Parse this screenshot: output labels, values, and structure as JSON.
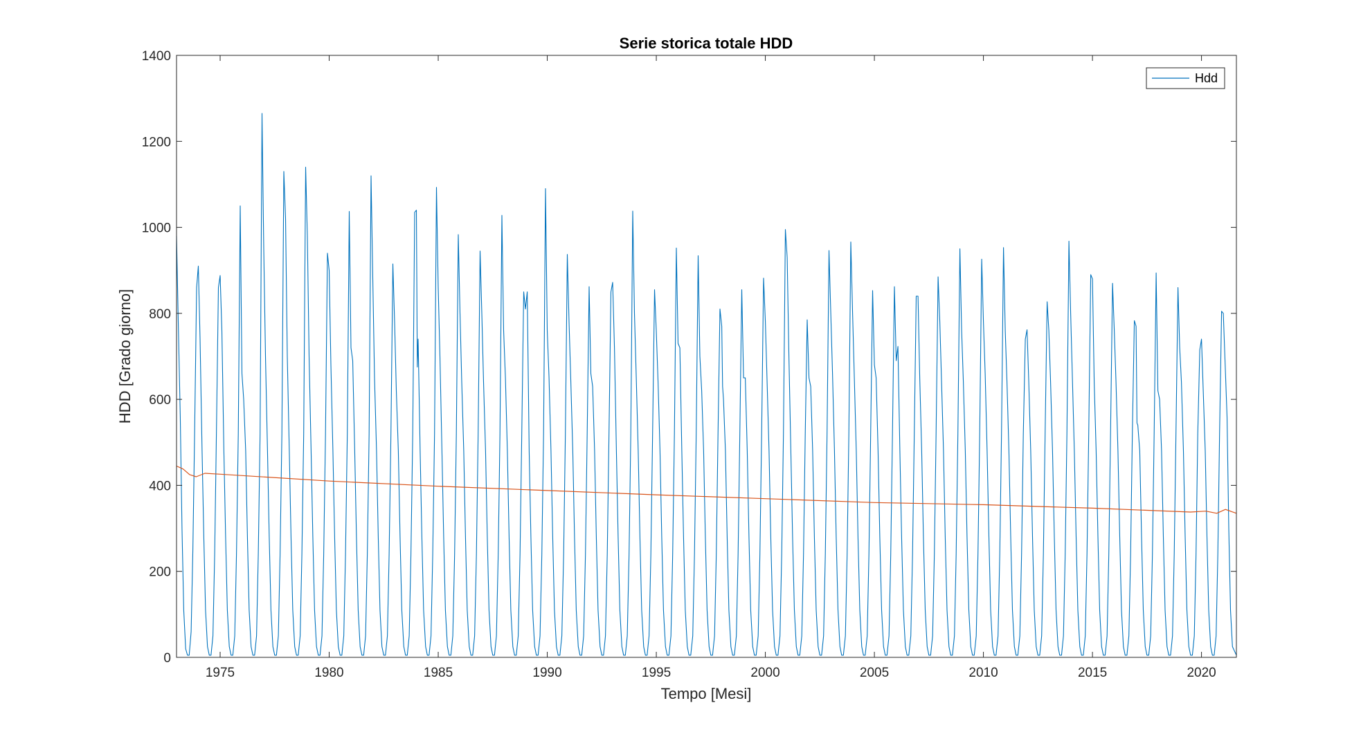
{
  "chart_data": {
    "type": "line",
    "title": "Serie storica totale HDD",
    "xlabel": "Tempo [Mesi]",
    "ylabel": "HDD [Grado giorno]",
    "xlim": [
      1973,
      2021.6
    ],
    "ylim": [
      0,
      1400
    ],
    "xticks": [
      1975,
      1980,
      1985,
      1990,
      1995,
      2000,
      2005,
      2010,
      2015,
      2020
    ],
    "yticks": [
      0,
      200,
      400,
      600,
      800,
      1000,
      1200,
      1400
    ],
    "grid": false,
    "legend": {
      "position": "top-right",
      "entries": [
        "Hdd"
      ]
    },
    "colors": {
      "hdd": "#0072BD",
      "trend": "#D95319",
      "axes": "#262626"
    },
    "series": [
      {
        "name": "Hdd",
        "color": "#0072BD",
        "winter_peaks": [
          {
            "year": 1973,
            "values": [
              980,
              780
            ]
          },
          {
            "year": 1974,
            "values": [
              860,
              910,
              740
            ]
          },
          {
            "year": 1975,
            "values": [
              860,
              888,
              760
            ]
          },
          {
            "year": 1976,
            "values": [
              1050,
              660,
              600
            ]
          },
          {
            "year": 1977,
            "values": [
              1265,
              950,
              700
            ]
          },
          {
            "year": 1978,
            "values": [
              1130,
              1020,
              700
            ]
          },
          {
            "year": 1979,
            "values": [
              1140,
              980,
              700
            ]
          },
          {
            "year": 1980,
            "values": [
              940,
              900,
              680
            ]
          },
          {
            "year": 1981,
            "values": [
              1037,
              720,
              690
            ]
          },
          {
            "year": 1982,
            "values": [
              1120,
              880,
              650
            ]
          },
          {
            "year": 1983,
            "values": [
              915,
              780,
              620
            ]
          },
          {
            "year": 1984,
            "values": [
              1035,
              1040,
              675,
              740
            ]
          },
          {
            "year": 1985,
            "values": [
              1093,
              860,
              700
            ]
          },
          {
            "year": 1986,
            "values": [
              983,
              800,
              640
            ]
          },
          {
            "year": 1987,
            "values": [
              945,
              800,
              640
            ]
          },
          {
            "year": 1988,
            "values": [
              1028,
              760,
              650
            ]
          },
          {
            "year": 1989,
            "values": [
              850,
              810,
              850
            ]
          },
          {
            "year": 1990,
            "values": [
              1090,
              760,
              650
            ]
          },
          {
            "year": 1991,
            "values": [
              937,
              780,
              640
            ]
          },
          {
            "year": 1992,
            "values": [
              862,
              660,
              630
            ]
          },
          {
            "year": 1993,
            "values": [
              850,
              872,
              720
            ]
          },
          {
            "year": 1994,
            "values": [
              1038,
              800,
              650
            ]
          },
          {
            "year": 1995,
            "values": [
              855,
              760,
              640
            ]
          },
          {
            "year": 1996,
            "values": [
              952,
              730,
              720
            ]
          },
          {
            "year": 1997,
            "values": [
              934,
              700,
              620
            ]
          },
          {
            "year": 1998,
            "values": [
              810,
              770,
              630,
              600
            ]
          },
          {
            "year": 1999,
            "values": [
              855,
              650,
              650
            ]
          },
          {
            "year": 2000,
            "values": [
              882,
              780,
              640
            ]
          },
          {
            "year": 2001,
            "values": [
              995,
              930,
              700
            ]
          },
          {
            "year": 2002,
            "values": [
              785,
              650,
              630
            ]
          },
          {
            "year": 2003,
            "values": [
              946,
              800,
              660
            ]
          },
          {
            "year": 2004,
            "values": [
              966,
              800,
              650
            ]
          },
          {
            "year": 2005,
            "values": [
              853,
              680,
              650
            ]
          },
          {
            "year": 2006,
            "values": [
              862,
              690,
              723
            ]
          },
          {
            "year": 2007,
            "values": [
              840,
              840,
              650
            ]
          },
          {
            "year": 2008,
            "values": [
              885,
              780,
              640
            ]
          },
          {
            "year": 2009,
            "values": [
              950,
              760,
              640
            ]
          },
          {
            "year": 2010,
            "values": [
              926,
              780,
              660
            ]
          },
          {
            "year": 2011,
            "values": [
              953,
              760,
              640
            ]
          },
          {
            "year": 2012,
            "values": [
              740,
              762,
              640
            ]
          },
          {
            "year": 2013,
            "values": [
              827,
              760,
              640
            ]
          },
          {
            "year": 2014,
            "values": [
              968,
              800,
              650
            ]
          },
          {
            "year": 2015,
            "values": [
              890,
              880,
              640
            ]
          },
          {
            "year": 2016,
            "values": [
              870,
              760,
              640
            ]
          },
          {
            "year": 2017,
            "values": [
              783,
              770,
              545,
              540
            ]
          },
          {
            "year": 2018,
            "values": [
              894,
              620,
              600
            ]
          },
          {
            "year": 2019,
            "values": [
              860,
              720,
              640
            ]
          },
          {
            "year": 2020,
            "values": [
              715,
              740,
              620
            ]
          },
          {
            "year": 2021,
            "values": [
              805,
              800
            ]
          }
        ],
        "summer_minimum": 5,
        "last_value": 5
      },
      {
        "color": "#D95319",
        "x": [
          1973.0,
          1973.3,
          1973.6,
          1973.9,
          1974.3,
          1975.0,
          1980.0,
          1985.0,
          1990.0,
          1995.0,
          2000.0,
          2005.0,
          2010.0,
          2015.0,
          2019.5,
          2020.2,
          2020.7,
          2021.1,
          2021.6
        ],
        "y": [
          445,
          438,
          425,
          420,
          428,
          426,
          410,
          398,
          388,
          378,
          369,
          360,
          355,
          347,
          338,
          340,
          335,
          344,
          335
        ]
      }
    ]
  }
}
